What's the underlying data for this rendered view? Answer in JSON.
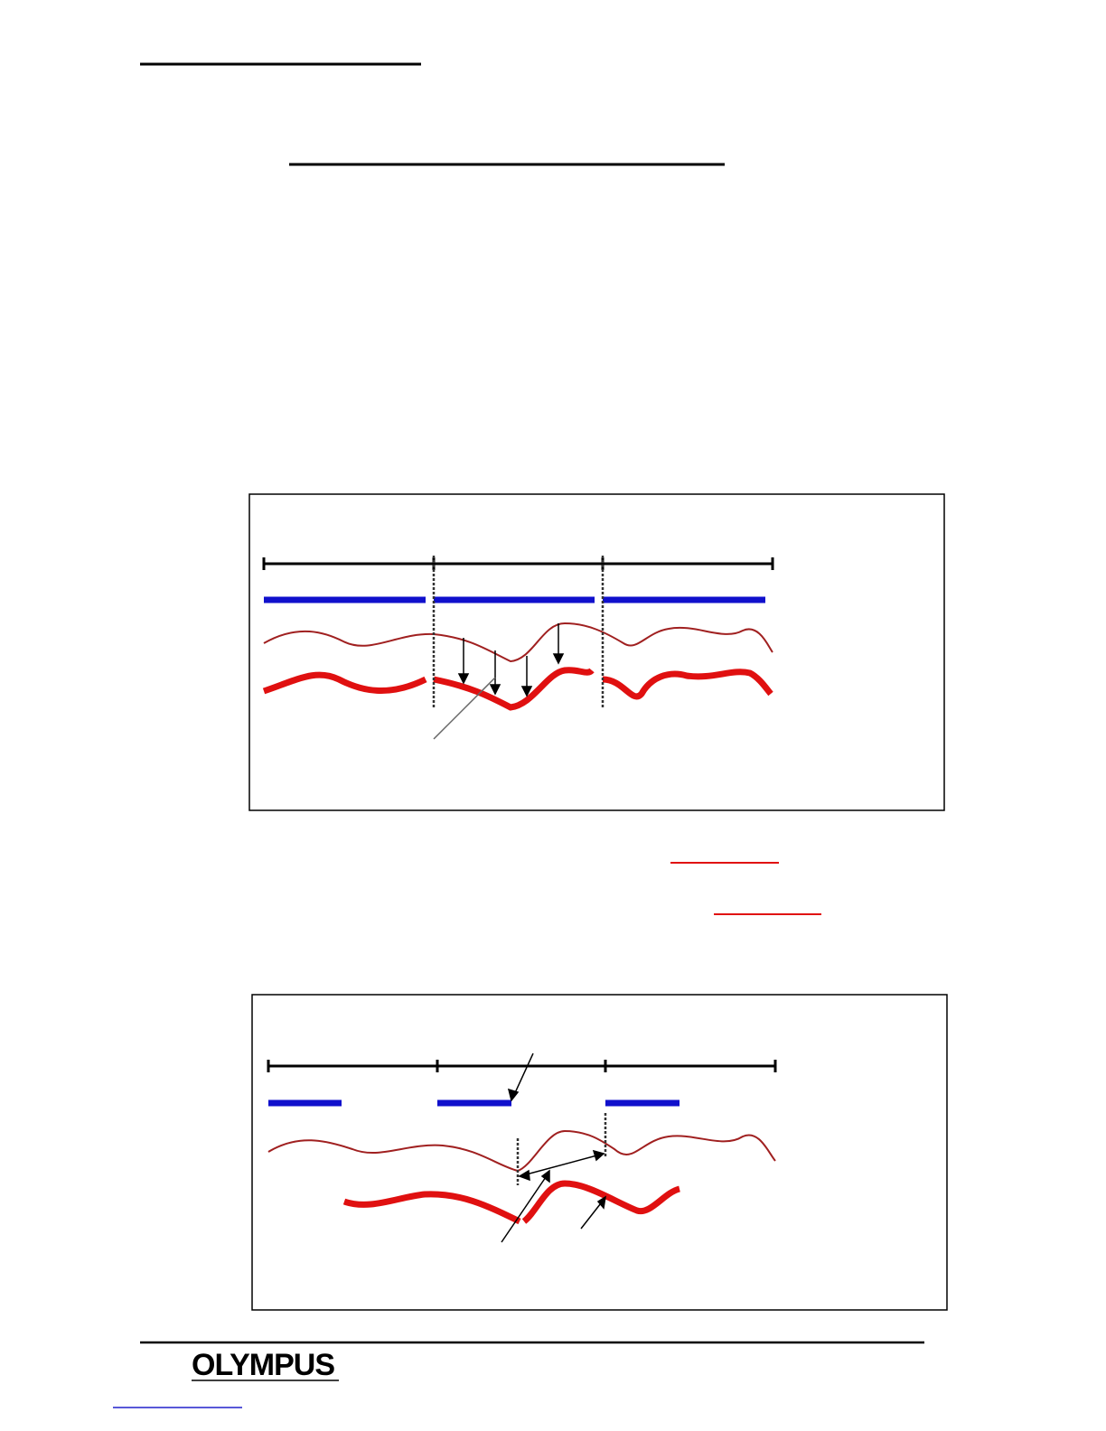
{
  "footer": {
    "logo": "OLYMPUS"
  }
}
